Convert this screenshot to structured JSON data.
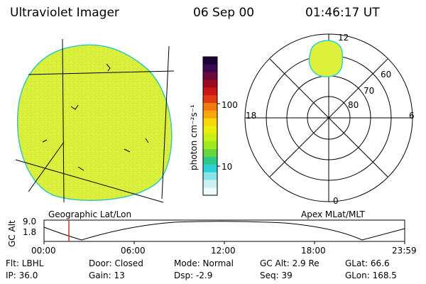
{
  "header": {
    "instrument": "Ultraviolet Imager",
    "date": "06 Sep 00",
    "time": "01:46:17 UT"
  },
  "colorbar": {
    "unit_label": "photon cm⁻²s⁻¹",
    "tick_labels": [
      "100",
      "10"
    ],
    "colors_top_to_bottom": [
      "#1a0033",
      "#3a0b50",
      "#6a0a3a",
      "#9a0a20",
      "#cc1616",
      "#e23a12",
      "#f07a10",
      "#f7a60c",
      "#f6d80a",
      "#e8ee10",
      "#c6f015",
      "#9ee824",
      "#66d73a",
      "#2ec98a",
      "#2fcfd6",
      "#86e3ea",
      "#c8f1f3",
      "#eefafb"
    ]
  },
  "polar_plot": {
    "labels": {
      "top": "12",
      "bottom": "0",
      "left": "18",
      "right": "6"
    },
    "latitude_labels": [
      "60",
      "70",
      "80"
    ]
  },
  "orbit": {
    "left_label": "Geographic Lat/Lon",
    "right_label": "Apex MLat/MLT",
    "y_axis_label": "GC Alt",
    "y_ticks": [
      "9.0",
      "1.8"
    ],
    "x_ticks": [
      "00:00",
      "06:00",
      "12:00",
      "18:00",
      "23:59"
    ],
    "marker_time": "01:46"
  },
  "info": {
    "flt": "Flt: LBHL",
    "ip": "IP: 36.0",
    "door": "Door: Closed",
    "gain": "Gain: 13",
    "mode": "Mode: Normal",
    "dsp": "Dsp:    -2.9",
    "gc_alt": "GC Alt: 2.9 Re",
    "seq": "Seq: 39",
    "glat": "GLat:    66.6",
    "glon": "GLon: 168.5"
  },
  "colors": {
    "image_fill": "#d9ef3a",
    "blob_fill": "#dff03a",
    "blob_edge": "#2fcfd6",
    "marker": "#c0392b"
  }
}
